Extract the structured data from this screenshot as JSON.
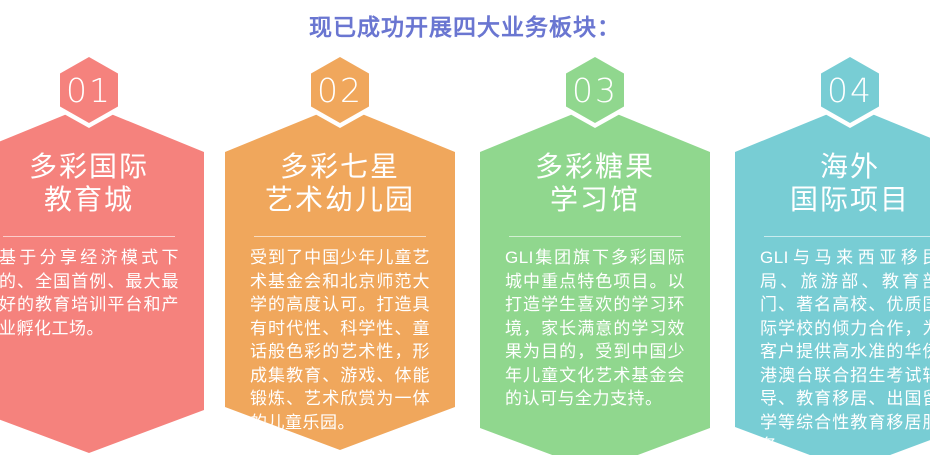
{
  "page": {
    "heading": "现已成功开展四大业务板块：",
    "heading_color": "#6a76d1",
    "background_color": "#ffffff"
  },
  "cards": [
    {
      "number": "01",
      "title_line1": "多彩国际",
      "title_line2": "教育城",
      "body": "基于分享经济模式下的、全国首例、最大最好的教育培训平台和产业孵化工场。",
      "color": "#f5827d"
    },
    {
      "number": "02",
      "title_line1": "多彩七星",
      "title_line2": "艺术幼儿园",
      "body": "受到了中国少年儿童艺术基金会和北京师范大学的高度认可。打造具有时代性、科学性、童话般色彩的艺术性，形成集教育、游戏、体能锻炼、艺术欣赏为一体的儿童乐园。",
      "color": "#f0a75c"
    },
    {
      "number": "03",
      "title_line1": "多彩糖果",
      "title_line2": "学习馆",
      "body": "GLI集团旗下多彩国际城中重点特色项目。以打造学生喜欢的学习环境，家长满意的学习效果为目的，受到中国少年儿童文化艺术基金会的认可与全力支持。",
      "color": "#90d78e"
    },
    {
      "number": "04",
      "title_line1": "海外",
      "title_line2": "国际项目",
      "body": "GLI与马来西亚移民局、旅游部、教育部门、著名高校、优质国际学校的倾力合作，为客户提供高水准的华侨港澳台联合招生考试辅导、教育移居、出国留学等综合性教育移居服务。",
      "color": "#78cdd4"
    }
  ]
}
